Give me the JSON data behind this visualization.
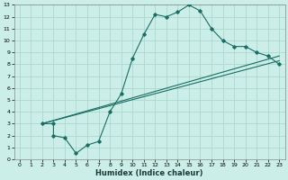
{
  "title": "",
  "xlabel": "Humidex (Indice chaleur)",
  "bg_color": "#cceee8",
  "grid_color": "#aad8d0",
  "line_color": "#1a6e64",
  "xlim": [
    -0.5,
    23.5
  ],
  "ylim": [
    0,
    13
  ],
  "xticks": [
    0,
    1,
    2,
    3,
    4,
    5,
    6,
    7,
    8,
    9,
    10,
    11,
    12,
    13,
    14,
    15,
    16,
    17,
    18,
    19,
    20,
    21,
    22,
    23
  ],
  "yticks": [
    0,
    1,
    2,
    3,
    4,
    5,
    6,
    7,
    8,
    9,
    10,
    11,
    12,
    13
  ],
  "line1_x": [
    2,
    3,
    3,
    4,
    5,
    6,
    7,
    8,
    9,
    10,
    11,
    12,
    13,
    14,
    15,
    16,
    17,
    18,
    19,
    20,
    21,
    22,
    23
  ],
  "line1_y": [
    3,
    3,
    2,
    1.8,
    0.5,
    1.2,
    1.5,
    4,
    5.5,
    8.5,
    10.5,
    12.2,
    12.0,
    12.4,
    13.0,
    12.5,
    11.0,
    10.0,
    9.5,
    9.5,
    9.0,
    8.7,
    8.0
  ],
  "line2_x": [
    2,
    23
  ],
  "line2_y": [
    3,
    8.3
  ],
  "line3_x": [
    2,
    23
  ],
  "line3_y": [
    3,
    8.7
  ],
  "tick_fontsize": 4.5,
  "xlabel_fontsize": 6.0,
  "linewidth": 0.8,
  "markersize": 1.8
}
